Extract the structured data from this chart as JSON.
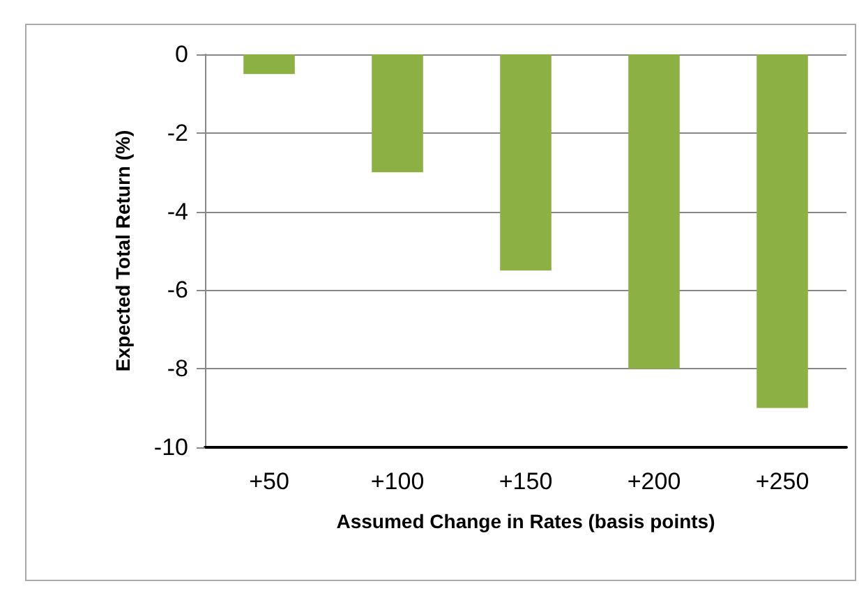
{
  "chart_data": {
    "type": "bar",
    "xlabel": "Assumed Change in Rates (basis points)",
    "ylabel": "Expected Total Return (%)",
    "categories": [
      "+50",
      "+100",
      "+150",
      "+200",
      "+250"
    ],
    "values": [
      -0.5,
      -3,
      -5.5,
      -8,
      -9
    ],
    "color": "#8cb043",
    "ylim": [
      -10,
      0
    ],
    "yticks": [
      -10,
      -8,
      -6,
      -4,
      -2,
      0
    ],
    "grid": "y"
  }
}
